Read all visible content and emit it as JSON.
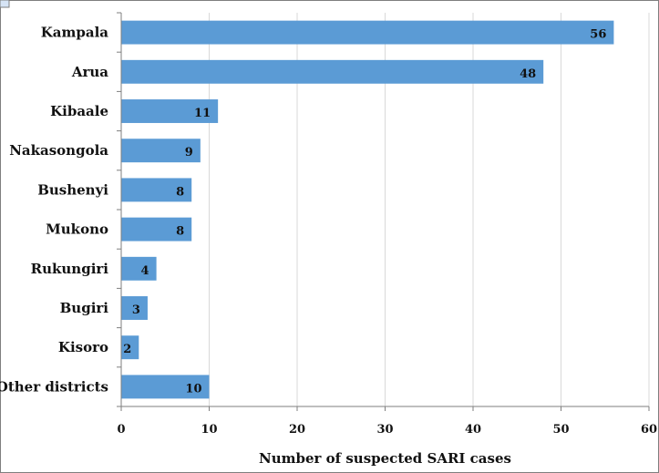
{
  "chart_data": {
    "type": "bar",
    "orientation": "horizontal",
    "categories": [
      "Kampala",
      "Arua",
      "Kibaale",
      "Nakasongola",
      "Bushenyi",
      "Mukono",
      "Rukungiri",
      "Bugiri",
      "Kisoro",
      "Other districts"
    ],
    "values": [
      56,
      48,
      11,
      9,
      8,
      8,
      4,
      3,
      2,
      10
    ],
    "xlabel": "Number of suspected SARI cases",
    "ylabel": "",
    "xlim": [
      0,
      60
    ],
    "xticks": [
      0,
      10,
      20,
      30,
      40,
      50,
      60
    ],
    "grid": "vertical",
    "bar_color": "#5b9bd5",
    "data_labels": true
  }
}
